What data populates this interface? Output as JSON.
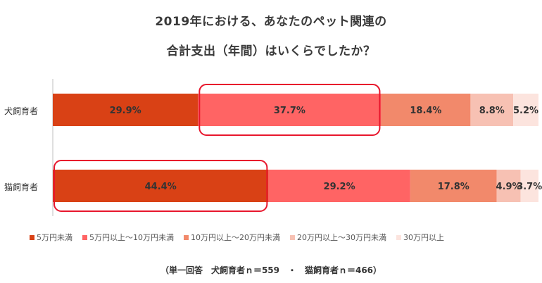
{
  "chart_data": {
    "type": "bar",
    "orientation": "horizontal",
    "stacked": "percent",
    "title": "2019年における、あなたのペット関連の",
    "subtitle": "合計支出（年間）はいくらでしたか？",
    "categories": [
      "犬飼育者",
      "猫飼育者"
    ],
    "series": [
      {
        "name": "5万円未満",
        "color": "#D94115",
        "values": [
          29.9,
          44.4
        ],
        "labels": [
          "29.9%",
          "44.4%"
        ]
      },
      {
        "name": "5万円以上～10万円未満",
        "color": "#FF6464",
        "values": [
          37.7,
          29.2
        ],
        "labels": [
          "37.7%",
          "29.2%"
        ]
      },
      {
        "name": "10万円以上～20万円未満",
        "color": "#F2896B",
        "values": [
          18.4,
          17.8
        ],
        "labels": [
          "18.4%",
          "17.8%"
        ]
      },
      {
        "name": "20万円以上～30万円未満",
        "color": "#F7C1B3",
        "values": [
          8.8,
          4.9
        ],
        "labels": [
          "8.8%",
          "4.9%"
        ]
      },
      {
        "name": "30万円以上",
        "color": "#FCE4DE",
        "values": [
          5.2,
          3.7
        ],
        "labels": [
          "5.2%",
          "3.7%"
        ]
      }
    ],
    "highlights": [
      {
        "category": "犬飼育者",
        "series": "5万円以上～10万円未満",
        "color": "#E8162C"
      },
      {
        "category": "猫飼育者",
        "series": "5万円未満",
        "color": "#E8162C"
      }
    ],
    "legend_position": "bottom",
    "grid": false
  },
  "footnote": "（単一回答　犬飼育者ｎ＝559　・　猫飼育者ｎ＝466）"
}
